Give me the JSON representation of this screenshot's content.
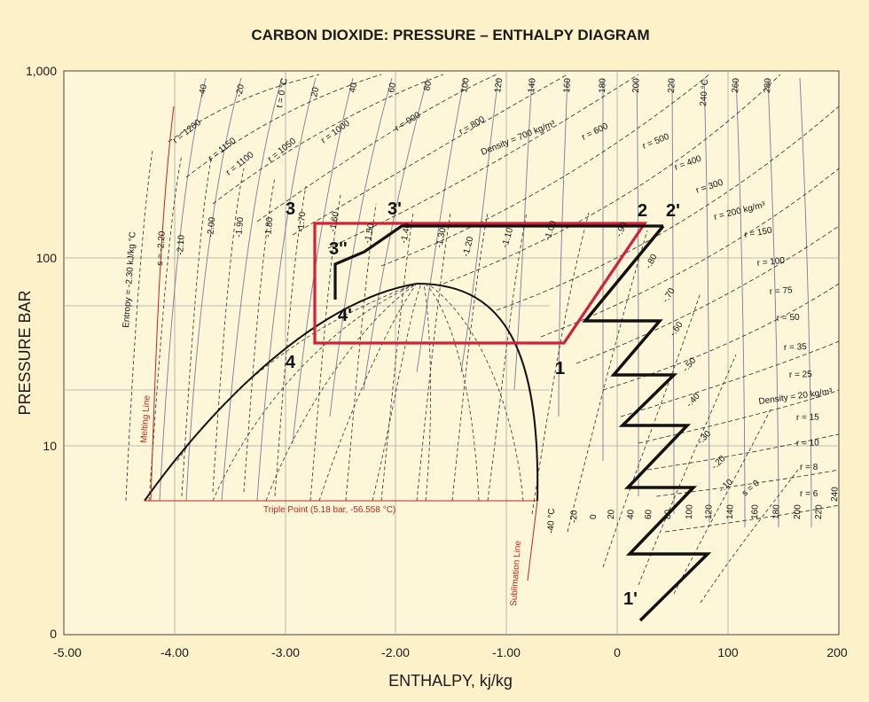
{
  "title": "CARBON DIOXIDE: PRESSURE – ENTHALPY DIAGRAM",
  "x_axis": {
    "label": "ENTHALPY, kj/kg",
    "ticks": [
      "-5.00",
      "-4.00",
      "-3.00",
      "-2.00",
      "-1.00",
      "0",
      "100",
      "200"
    ]
  },
  "y_axis": {
    "label": "PRESSURE BAR",
    "ticks": [
      "1,000",
      "100",
      "10",
      "0"
    ]
  },
  "temperature_labels": [
    "-40",
    "-20",
    "t = 0 °C",
    "20",
    "40",
    "60",
    "80",
    "100",
    "120",
    "140",
    "160",
    "180",
    "200",
    "220",
    "240 °C",
    "260",
    "280"
  ],
  "density_labels_upper": [
    "r = 1200",
    "r = 1150",
    "r = 1100",
    "r = 1050",
    "r = 1000",
    "r = 900",
    "r = 800",
    "Density = 700 kg/m³",
    "r = 600",
    "r = 500",
    "r = 400",
    "r = 300",
    "r = 200 kg/m³",
    "r = 150",
    "r = 100",
    "r = 75",
    "r = 50",
    "r = 35",
    "r = 25",
    "Density = 20 kg/m³",
    "r = 15",
    "r = 10",
    "r = 8",
    "r = 6"
  ],
  "entropy_labels": [
    "Entropy = -2.30 kJ/kg °C",
    "s = -2.20",
    "-2.10",
    "-2.00",
    "-1.90",
    "-1.80",
    "-1.70",
    "-1.60",
    "-1.50",
    "-1.40",
    "-1.30",
    "-1.20",
    "-1.10",
    "-1.00",
    "-.90",
    "-.80",
    "-.70",
    "-.60",
    "-.50",
    "-.40",
    "-.30",
    "-.20",
    "-.10",
    "s = 0"
  ],
  "lower_temp_labels": [
    "-40 °C",
    "-20",
    "0",
    "20",
    "40",
    "60",
    "80",
    "100",
    "120",
    "140",
    "160",
    "180",
    "200",
    "220",
    "240"
  ],
  "annotations": {
    "melting_line": "Melting Line",
    "triple_point": "Triple Point (5.18 bar, -56.558 °C)",
    "sublimation_line": "Sublimation Line"
  },
  "cycle_points": [
    "1",
    "1'",
    "2",
    "2'",
    "3",
    "3'",
    "3''",
    "4",
    "4'"
  ]
}
